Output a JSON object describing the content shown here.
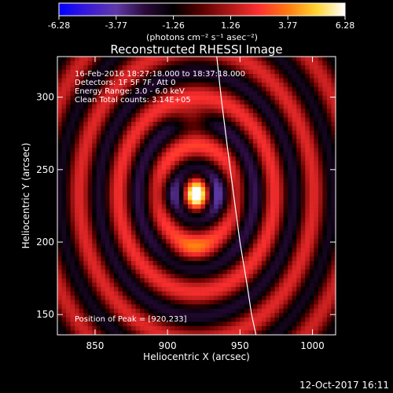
{
  "chart_data": {
    "type": "heatmap",
    "title": "Reconstructed RHESSI Image",
    "xlabel": "Heliocentric X (arcsec)",
    "ylabel": "Heliocentric Y (arcsec)",
    "xlim": [
      824,
      1016
    ],
    "ylim": [
      136,
      328
    ],
    "x_ticks": [
      850,
      900,
      950,
      1000
    ],
    "y_ticks": [
      150,
      200,
      250,
      300
    ],
    "colorbar": {
      "min": -6.28,
      "max": 6.28,
      "ticks": [
        "-6.28",
        "-3.77",
        "-1.26",
        "1.26",
        "3.77",
        "6.28"
      ],
      "unit_label": "(photons cm⁻² s⁻¹ asec⁻²)",
      "colormap_stops": [
        "#0000ff",
        "#3b1ad6",
        "#5f3aa8",
        "#2a0a3a",
        "#000000",
        "#5a0000",
        "#b01818",
        "#ff3030",
        "#ff7a10",
        "#ffd430",
        "#ffffff"
      ]
    },
    "annotations": [
      "16-Feb-2016 18:27:18.000 to 18:37:18.000",
      "Detectors: 1F 5F 7F, Att 0",
      "Energy Range: 3.0 - 6.0 keV",
      "Clean     Total counts: 3.14E+05"
    ],
    "peak": {
      "label": "Position of Peak = [920,233]",
      "x": 920,
      "y": 233
    },
    "limb_curve": [
      [
        934,
        328
      ],
      [
        937,
        300
      ],
      [
        942,
        260
      ],
      [
        946,
        230
      ],
      [
        950,
        200
      ],
      [
        955,
        170
      ],
      [
        958,
        150
      ],
      [
        961,
        136
      ]
    ]
  },
  "footer": {
    "date": "12-Oct-2017 16:11"
  }
}
